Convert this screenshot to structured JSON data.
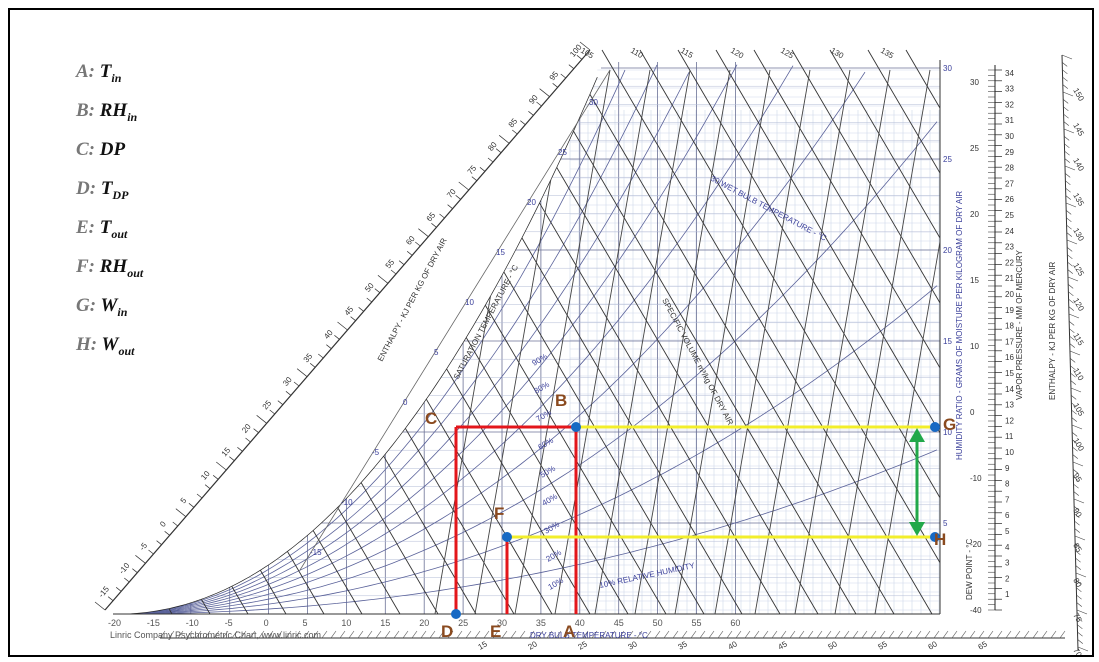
{
  "legend": [
    {
      "key": "A:",
      "main": "T",
      "sub": "in"
    },
    {
      "key": "B:",
      "main": "RH",
      "sub": "in"
    },
    {
      "key": "C:",
      "main": "DP",
      "sub": ""
    },
    {
      "key": "D:",
      "main": "T",
      "sub": "DP"
    },
    {
      "key": "E:",
      "main": "T",
      "sub": "out"
    },
    {
      "key": "F:",
      "main": "RH",
      "sub": "out"
    },
    {
      "key": "G:",
      "main": "W",
      "sub": "in"
    },
    {
      "key": "H:",
      "main": "W",
      "sub": "out"
    }
  ],
  "points": {
    "A": "A",
    "B": "B",
    "C": "C",
    "D": "D",
    "E": "E",
    "F": "F",
    "G": "G",
    "H": "H"
  },
  "chart_text": {
    "credit": "Linric Company Psychrometric Chart, www.linric.com",
    "dry_bulb_label": "DRY BULB TEMPERATURE - °C",
    "enthalpy_left_label": "ENTHALPY - KJ PER KG OF DRY AIR",
    "saturation_label": "SATURATION TEMPERATURE - °C",
    "humidity_ratio_label": "HUMIDITY RATIO - GRAMS OF MOISTURE PER KILOGRAM OF DRY AIR",
    "vapor_pressure_label": "VAPOR PRESSURE - MM OF MERCURY",
    "dew_point_label": "DEW POINT - °C",
    "enthalpy_right_label": "ENTHALPY - KJ PER KG OF DRY AIR",
    "wet_bulb_label": "30 WET BULB TEMPERATURE - °C",
    "specific_volume_label": "SPECIFIC VOLUME m³/kg OF DRY AIR",
    "rh_label": "10% RELATIVE HUMIDITY"
  },
  "dry_bulb_ticks": [
    "-20",
    "-15",
    "-10",
    "-5",
    "0",
    "5",
    "10",
    "15",
    "20",
    "25",
    "30",
    "35",
    "40",
    "45",
    "50",
    "55",
    "60"
  ],
  "humidity_ticks": [
    "5",
    "10",
    "15",
    "20",
    "25",
    "30"
  ],
  "dew_point_ticks": [
    "-40",
    "-20",
    "-10",
    "0",
    "10",
    "15",
    "20",
    "25",
    "30"
  ],
  "vapor_ticks": [
    "1",
    "2",
    "3",
    "4",
    "5",
    "6",
    "7",
    "8",
    "9",
    "10",
    "11",
    "12",
    "13",
    "14",
    "15",
    "16",
    "17",
    "18",
    "19",
    "20",
    "21",
    "22",
    "23",
    "24",
    "25",
    "26",
    "27",
    "28",
    "29",
    "30",
    "31",
    "32",
    "33",
    "34"
  ],
  "enthalpy_right_ticks": [
    "70",
    "75",
    "80",
    "85",
    "90",
    "95",
    "100",
    "105",
    "110",
    "115",
    "120",
    "125",
    "130",
    "135",
    "140",
    "145",
    "150"
  ],
  "enthalpy_top_ticks": [
    "105",
    "110",
    "115",
    "120",
    "125",
    "130",
    "135"
  ],
  "enthalpy_bottom_ticks": [
    "15",
    "20",
    "25",
    "30",
    "35",
    "40",
    "45",
    "50",
    "55",
    "60",
    "65"
  ],
  "left_enthalpy_ticks": [
    "-15",
    "-10",
    "-5",
    "0",
    "5",
    "10",
    "15",
    "20",
    "25",
    "30",
    "35",
    "40",
    "45",
    "50",
    "55",
    "60",
    "65",
    "70",
    "75",
    "80",
    "85",
    "90",
    "95",
    "100"
  ],
  "saturation_ticks": [
    "-15",
    "-10",
    "-5",
    "0",
    "5",
    "10",
    "15",
    "20",
    "25",
    "30"
  ],
  "rh_ticks": [
    "10%",
    "20%",
    "30%",
    "40%",
    "50%",
    "60%",
    "70%",
    "80%",
    "90%"
  ],
  "colors": {
    "process": "#e3161b",
    "humidity": "#f2ee2b",
    "delta": "#21a84a",
    "point": "#1769c4",
    "label": "#8a4a1f"
  }
}
